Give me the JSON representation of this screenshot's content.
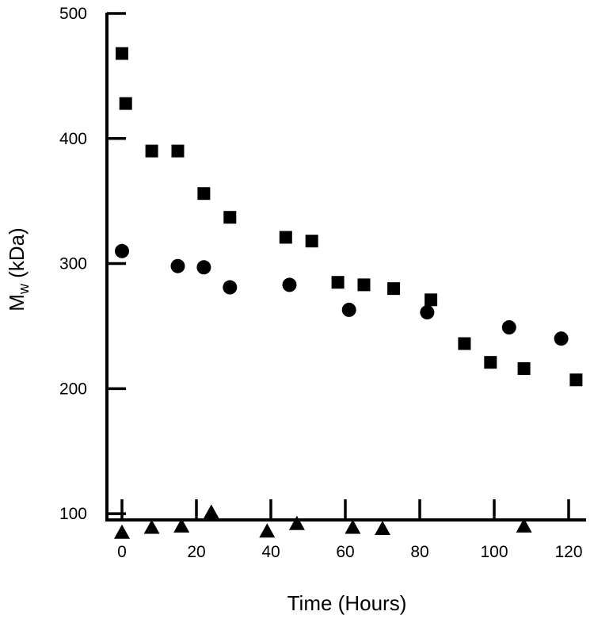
{
  "chart_data": {
    "type": "scatter",
    "title": "",
    "xlabel": "Time (Hours)",
    "ylabel": {
      "main": "M",
      "subscript": "w",
      "unit": " (kDa)"
    },
    "xlim": [
      -2,
      124
    ],
    "ylim": [
      50,
      500
    ],
    "x_ticks": [
      0,
      20,
      40,
      60,
      80,
      100,
      120
    ],
    "y_ticks": [
      100,
      200,
      300,
      400,
      500
    ],
    "grid": false,
    "legend": "none",
    "series": [
      {
        "marker": "square",
        "points": [
          [
            0,
            468
          ],
          [
            1,
            428
          ],
          [
            8,
            390
          ],
          [
            15,
            390
          ],
          [
            22,
            356
          ],
          [
            29,
            337
          ],
          [
            44,
            321
          ],
          [
            51,
            318
          ],
          [
            58,
            285
          ],
          [
            65,
            283
          ],
          [
            73,
            280
          ],
          [
            83,
            271
          ],
          [
            92,
            236
          ],
          [
            99,
            221
          ],
          [
            108,
            216
          ],
          [
            122,
            207
          ]
        ]
      },
      {
        "marker": "circle",
        "points": [
          [
            0,
            310
          ],
          [
            15,
            298
          ],
          [
            22,
            297
          ],
          [
            29,
            281
          ],
          [
            45,
            283
          ],
          [
            61,
            263
          ],
          [
            82,
            261
          ],
          [
            104,
            249
          ],
          [
            118,
            240
          ]
        ]
      },
      {
        "marker": "triangle",
        "points": [
          [
            0,
            85
          ],
          [
            8,
            89
          ],
          [
            16,
            90
          ],
          [
            24,
            101
          ],
          [
            39,
            86
          ],
          [
            47,
            92
          ],
          [
            62,
            89
          ],
          [
            70,
            88
          ],
          [
            108,
            90
          ]
        ]
      }
    ]
  }
}
